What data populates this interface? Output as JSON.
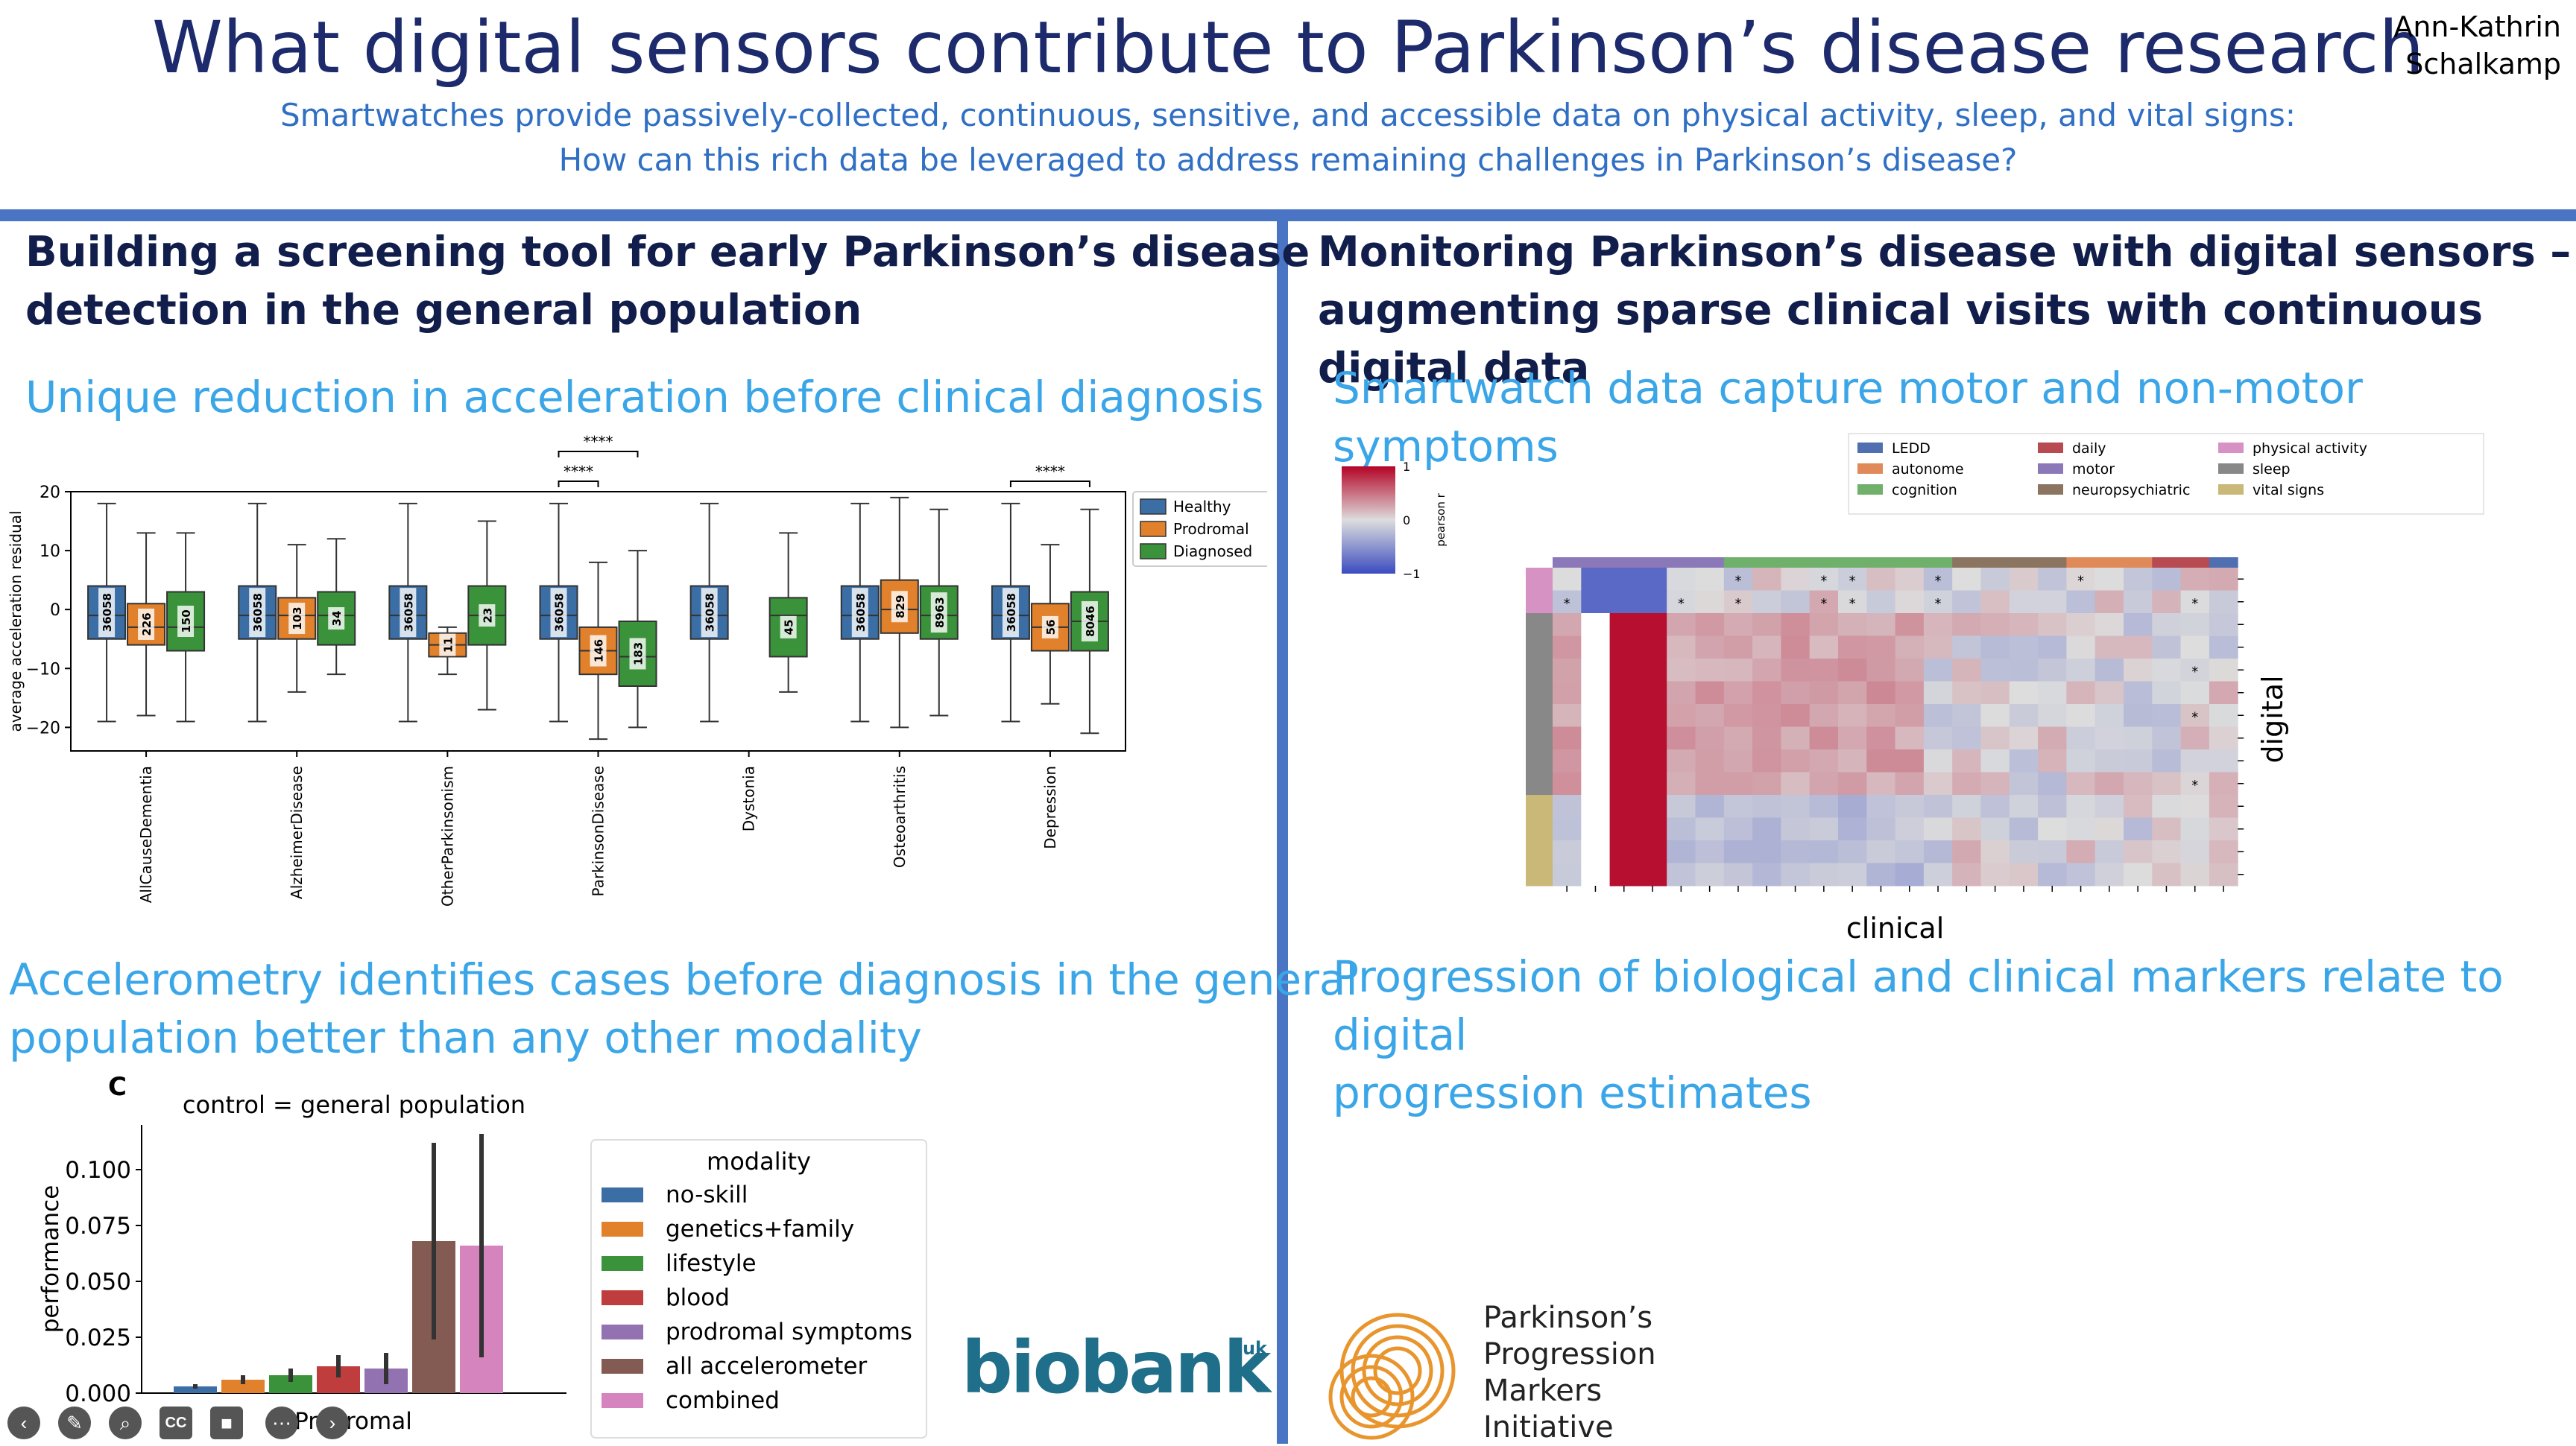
{
  "header": {
    "title": "What digital sensors contribute to Parkinson’s disease research",
    "subtitle_line1": "Smartwatches provide passively-collected, continuous, sensitive, and accessible data on physical activity, sleep, and vital signs:",
    "subtitle_line2": "How can this rich data be leveraged to address remaining challenges in Parkinson’s disease?",
    "author_line1": "Ann-Kathrin",
    "author_line2": "Schalkamp"
  },
  "left": {
    "title_line1": "Building a screening tool for early Parkinson’s disease",
    "title_line2": "detection in the general population",
    "sub1": "Unique reduction in acceleration before clinical diagnosis",
    "sub2_line1": "Accelerometry identifies cases before diagnosis in the general",
    "sub2_line2": "population better than any other modality"
  },
  "right": {
    "title_line1": "Monitoring Parkinson’s disease with digital sensors –",
    "title_line2": "augmenting sparse clinical visits with continuous digital data",
    "sub1": "Smartwatch data capture motor and non-motor symptoms",
    "sub2_line1": "Progression of biological and clinical markers relate to digital",
    "sub2_line2": "progression estimates"
  },
  "colors": {
    "healthy": "#3b6ea5",
    "prodromal": "#e1812c",
    "diagnosed": "#3a923a",
    "accent_blue": "#4a74c4",
    "title_navy": "#1d2a6b",
    "heading_sky": "#3aa6e8",
    "ppmi_orange": "#e8952e",
    "biobank_teal": "#1f6f8b"
  },
  "chart_data": [
    {
      "type": "box",
      "ylabel": "average acceleration residual",
      "ylim": [
        -24,
        20
      ],
      "yticks": [
        20,
        10,
        0,
        -10,
        -20
      ],
      "legend": [
        "Healthy",
        "Prodromal",
        "Diagnosed"
      ],
      "legend_position": "top-right",
      "categories": [
        "AllCauseDementia",
        "AlzheimerDisease",
        "OtherParkinsonism",
        "ParkinsonDisease",
        "Dystonia",
        "Osteoarthritis",
        "Depression"
      ],
      "boxes": [
        {
          "category": "AllCauseDementia",
          "group": "Healthy",
          "n": "36058",
          "whisker_low": -19,
          "q1": -5,
          "median": -1,
          "q3": 4,
          "whisker_high": 18
        },
        {
          "category": "AllCauseDementia",
          "group": "Prodromal",
          "n": "226",
          "whisker_low": -18,
          "q1": -6,
          "median": -3,
          "q3": 1,
          "whisker_high": 13
        },
        {
          "category": "AllCauseDementia",
          "group": "Diagnosed",
          "n": "150",
          "whisker_low": -19,
          "q1": -7,
          "median": -3,
          "q3": 3,
          "whisker_high": 13
        },
        {
          "category": "AlzheimerDisease",
          "group": "Healthy",
          "n": "36058",
          "whisker_low": -19,
          "q1": -5,
          "median": -1,
          "q3": 4,
          "whisker_high": 18
        },
        {
          "category": "AlzheimerDisease",
          "group": "Prodromal",
          "n": "103",
          "whisker_low": -14,
          "q1": -5,
          "median": -1,
          "q3": 2,
          "whisker_high": 11
        },
        {
          "category": "AlzheimerDisease",
          "group": "Diagnosed",
          "n": "34",
          "whisker_low": -11,
          "q1": -6,
          "median": -1,
          "q3": 3,
          "whisker_high": 12
        },
        {
          "category": "OtherParkinsonism",
          "group": "Healthy",
          "n": "36058",
          "whisker_low": -19,
          "q1": -5,
          "median": -1,
          "q3": 4,
          "whisker_high": 18
        },
        {
          "category": "OtherParkinsonism",
          "group": "Prodromal",
          "n": "11",
          "whisker_low": -11,
          "q1": -8,
          "median": -6,
          "q3": -4,
          "whisker_high": -3
        },
        {
          "category": "OtherParkinsonism",
          "group": "Diagnosed",
          "n": "23",
          "whisker_low": -17,
          "q1": -6,
          "median": -1,
          "q3": 4,
          "whisker_high": 15
        },
        {
          "category": "ParkinsonDisease",
          "group": "Healthy",
          "n": "36058",
          "whisker_low": -19,
          "q1": -5,
          "median": -1,
          "q3": 4,
          "whisker_high": 18
        },
        {
          "category": "ParkinsonDisease",
          "group": "Prodromal",
          "n": "146",
          "whisker_low": -22,
          "q1": -11,
          "median": -7,
          "q3": -3,
          "whisker_high": 8
        },
        {
          "category": "ParkinsonDisease",
          "group": "Diagnosed",
          "n": "183",
          "whisker_low": -20,
          "q1": -13,
          "median": -8,
          "q3": -2,
          "whisker_high": 10
        },
        {
          "category": "Dystonia",
          "group": "Healthy",
          "n": "36058",
          "whisker_low": -19,
          "q1": -5,
          "median": -1,
          "q3": 4,
          "whisker_high": 18
        },
        {
          "category": "Dystonia",
          "group": "Diagnosed",
          "n": "45",
          "whisker_low": -14,
          "q1": -8,
          "median": -1,
          "q3": 2,
          "whisker_high": 13
        },
        {
          "category": "Osteoarthritis",
          "group": "Healthy",
          "n": "36058",
          "whisker_low": -19,
          "q1": -5,
          "median": -1,
          "q3": 4,
          "whisker_high": 18
        },
        {
          "category": "Osteoarthritis",
          "group": "Prodromal",
          "n": "829",
          "whisker_low": -20,
          "q1": -4,
          "median": 0,
          "q3": 5,
          "whisker_high": 19
        },
        {
          "category": "Osteoarthritis",
          "group": "Diagnosed",
          "n": "8963",
          "whisker_low": -18,
          "q1": -5,
          "median": -1,
          "q3": 4,
          "whisker_high": 17
        },
        {
          "category": "Depression",
          "group": "Healthy",
          "n": "36058",
          "whisker_low": -19,
          "q1": -5,
          "median": -1,
          "q3": 4,
          "whisker_high": 18
        },
        {
          "category": "Depression",
          "group": "Prodromal",
          "n": "56",
          "whisker_low": -16,
          "q1": -7,
          "median": -3,
          "q3": 1,
          "whisker_high": 11
        },
        {
          "category": "Depression",
          "group": "Diagnosed",
          "n": "8046",
          "whisker_low": -21,
          "q1": -7,
          "median": -2,
          "q3": 3,
          "whisker_high": 17
        }
      ],
      "significance": [
        {
          "label": "****",
          "category": "ParkinsonDisease",
          "from": "Healthy",
          "to": "Prodromal"
        },
        {
          "label": "****",
          "category": "ParkinsonDisease",
          "from": "Healthy",
          "to": "Diagnosed"
        },
        {
          "label": "****",
          "category": "Depression",
          "from": "Healthy",
          "to": "Diagnosed"
        }
      ]
    },
    {
      "type": "bar",
      "panel_label": "C",
      "title": "control = general population",
      "ylabel": "performance",
      "ylim": [
        0,
        0.12
      ],
      "yticks": [
        "0.100",
        "0.075",
        "0.050",
        "0.025",
        "0.000"
      ],
      "category": "Prodromal",
      "legend_title": "modality",
      "series": [
        {
          "name": "no-skill",
          "value": 0.003,
          "err": 0.001,
          "color": "#3b6ea5"
        },
        {
          "name": "genetics+family",
          "value": 0.006,
          "err": 0.002,
          "color": "#e1812c"
        },
        {
          "name": "lifestyle",
          "value": 0.008,
          "err": 0.003,
          "color": "#3a923a"
        },
        {
          "name": "blood",
          "value": 0.012,
          "err": 0.005,
          "color": "#c03d3e"
        },
        {
          "name": "prodromal symptoms",
          "value": 0.011,
          "err": 0.007,
          "color": "#9372b2"
        },
        {
          "name": "all accelerometer",
          "value": 0.068,
          "err": 0.044,
          "color": "#845b53"
        },
        {
          "name": "combined",
          "value": 0.066,
          "err": 0.05,
          "color": "#d684bd"
        }
      ]
    },
    {
      "type": "heatmap",
      "xlabel": "clinical",
      "ylabel": "digital",
      "colorbar_label": "pearson r",
      "colorbar_ticks": [
        "1",
        "0",
        "−1"
      ],
      "legend": [
        {
          "name": "LEDD",
          "color": "#4f6fb0"
        },
        {
          "name": "autonome",
          "color": "#e08a5a"
        },
        {
          "name": "cognition",
          "color": "#6fb06a"
        },
        {
          "name": "daily",
          "color": "#b84a52"
        },
        {
          "name": "motor",
          "color": "#8a78b8"
        },
        {
          "name": "neuropsychiatric",
          "color": "#8b7560"
        },
        {
          "name": "physical activity",
          "color": "#d792c4"
        },
        {
          "name": "sleep",
          "color": "#888888"
        },
        {
          "name": "vital signs",
          "color": "#c9b877"
        }
      ],
      "cell_marker": "*"
    }
  ],
  "logos": {
    "biobank": "biobank",
    "biobank_sup": "uk",
    "ppmi_line1": "Parkinson’s",
    "ppmi_line2": "Progression",
    "ppmi_line3": "Markers",
    "ppmi_line4": "Initiative"
  },
  "toolbar": [
    "back-icon",
    "pen-icon",
    "search-icon",
    "cc-icon",
    "camera-icon",
    "more-icon",
    "forward-icon"
  ]
}
